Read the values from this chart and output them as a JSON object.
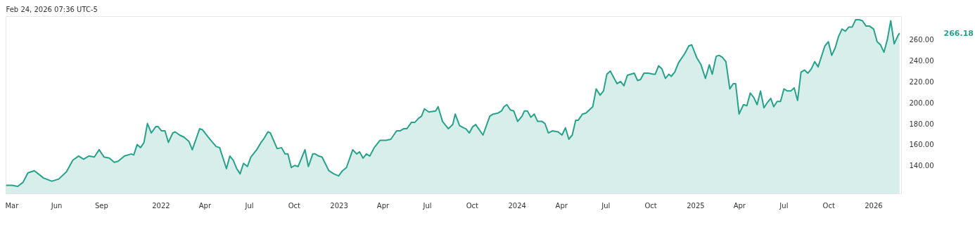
{
  "chart_data": {
    "type": "area",
    "annotations": [
      "Feb 24, 2026 07:36 UTC-5",
      "266.18"
    ],
    "x": [
      "2021-02-17",
      "2021-03-02",
      "2021-03-13",
      "2021-03-24",
      "2021-04-03",
      "2021-04-16",
      "2021-04-27",
      "2021-05-05",
      "2021-05-22",
      "2021-06-05",
      "2021-06-21",
      "2021-07-04",
      "2021-07-16",
      "2021-07-26",
      "2021-08-06",
      "2021-08-17",
      "2021-08-27",
      "2021-09-06",
      "2021-09-17",
      "2021-09-27",
      "2021-10-05",
      "2021-10-18",
      "2021-11-01",
      "2021-11-06",
      "2021-11-13",
      "2021-11-20",
      "2021-11-27",
      "2021-12-04",
      "2021-12-12",
      "2021-12-21",
      "2021-12-26",
      "2022-01-02",
      "2022-01-09",
      "2022-01-16",
      "2022-01-25",
      "2022-01-30",
      "2022-02-08",
      "2022-02-17",
      "2022-02-27",
      "2022-03-06",
      "2022-03-21",
      "2022-03-27",
      "2022-04-11",
      "2022-04-24",
      "2022-05-01",
      "2022-05-15",
      "2022-05-22",
      "2022-05-29",
      "2022-06-05",
      "2022-06-12",
      "2022-06-19",
      "2022-06-27",
      "2022-07-04",
      "2022-07-16",
      "2022-07-25",
      "2022-07-30",
      "2022-08-08",
      "2022-08-13",
      "2022-08-27",
      "2022-09-05",
      "2022-09-12",
      "2022-09-18",
      "2022-09-25",
      "2022-10-02",
      "2022-10-09",
      "2022-10-23",
      "2022-10-30",
      "2022-11-08",
      "2022-11-13",
      "2022-11-20",
      "2022-11-27",
      "2022-12-11",
      "2022-12-21",
      "2022-12-31",
      "2023-01-08",
      "2023-01-16",
      "2023-01-29",
      "2023-02-06",
      "2023-02-12",
      "2023-02-19",
      "2023-02-26",
      "2023-03-05",
      "2023-03-14",
      "2023-03-26",
      "2023-04-07",
      "2023-04-17",
      "2023-04-29",
      "2023-05-06",
      "2023-05-13",
      "2023-05-20",
      "2023-05-29",
      "2023-06-05",
      "2023-06-13",
      "2023-06-19",
      "2023-06-25",
      "2023-07-04",
      "2023-07-18",
      "2023-07-23",
      "2023-08-01",
      "2023-08-13",
      "2023-08-22",
      "2023-08-27",
      "2023-09-05",
      "2023-09-13",
      "2023-09-18",
      "2023-09-25",
      "2023-10-02",
      "2023-10-08",
      "2023-10-23",
      "2023-11-06",
      "2023-11-13",
      "2023-11-23",
      "2023-11-30",
      "2023-12-05",
      "2023-12-11",
      "2023-12-18",
      "2023-12-25",
      "2024-01-02",
      "2024-01-11",
      "2024-01-16",
      "2024-01-22",
      "2024-01-29",
      "2024-02-05",
      "2024-02-12",
      "2024-02-21",
      "2024-02-27",
      "2024-03-05",
      "2024-03-13",
      "2024-03-25",
      "2024-04-02",
      "2024-04-09",
      "2024-04-16",
      "2024-04-23",
      "2024-04-30",
      "2024-05-05",
      "2024-05-14",
      "2024-05-21",
      "2024-05-28",
      "2024-06-04",
      "2024-06-11",
      "2024-06-19",
      "2024-06-26",
      "2024-07-03",
      "2024-07-10",
      "2024-07-18",
      "2024-07-24",
      "2024-07-31",
      "2024-08-07",
      "2024-08-14",
      "2024-08-21",
      "2024-08-28",
      "2024-09-04",
      "2024-09-10",
      "2024-09-17",
      "2024-09-26",
      "2024-10-06",
      "2024-10-10",
      "2024-10-17",
      "2024-10-24",
      "2024-10-31",
      "2024-11-07",
      "2024-11-12",
      "2024-11-19",
      "2024-11-27",
      "2024-12-10",
      "2024-12-18",
      "2024-12-24",
      "2025-01-03",
      "2025-01-12",
      "2025-01-21",
      "2025-01-29",
      "2025-02-04",
      "2025-02-12",
      "2025-02-18",
      "2025-02-25",
      "2025-03-04",
      "2025-03-12",
      "2025-03-19",
      "2025-03-24",
      "2025-03-31",
      "2025-04-09",
      "2025-04-16",
      "2025-04-23",
      "2025-04-30",
      "2025-05-07",
      "2025-05-14",
      "2025-05-21",
      "2025-05-28",
      "2025-06-04",
      "2025-06-10",
      "2025-06-17",
      "2025-06-24",
      "2025-07-01",
      "2025-07-08",
      "2025-07-15",
      "2025-07-22",
      "2025-07-29",
      "2025-08-05",
      "2025-08-12",
      "2025-08-19",
      "2025-08-26",
      "2025-09-02",
      "2025-09-09",
      "2025-09-16",
      "2025-09-23",
      "2025-09-30",
      "2025-10-07",
      "2025-10-14",
      "2025-10-21",
      "2025-10-28",
      "2025-11-04",
      "2025-11-11",
      "2025-11-18",
      "2025-11-25",
      "2025-12-02",
      "2025-12-09",
      "2025-12-16",
      "2025-12-23",
      "2026-01-01",
      "2026-01-08",
      "2026-01-15",
      "2026-01-22",
      "2026-01-29",
      "2026-02-05",
      "2026-02-12",
      "2026-02-20",
      "2026-02-23"
    ],
    "series": [
      {
        "color": "#26a28c",
        "values": [
          121,
          121,
          120,
          124,
          133,
          135,
          131,
          128,
          125,
          127,
          134,
          145,
          149,
          146,
          149,
          148,
          155,
          148,
          147,
          143,
          144,
          149,
          151,
          150,
          160,
          157,
          162,
          180,
          171,
          177,
          177,
          173,
          173,
          162,
          171,
          172,
          169,
          167,
          163,
          155,
          175,
          174,
          165,
          158,
          157,
          137,
          149,
          145,
          137,
          132,
          142,
          139,
          148,
          155,
          162,
          165,
          172,
          171,
          156,
          157,
          151,
          151,
          138,
          140,
          139,
          155,
          139,
          151,
          151,
          149,
          148,
          135,
          132,
          130,
          135,
          138,
          155,
          151,
          153,
          147,
          151,
          149,
          157,
          164,
          164,
          165,
          173,
          173,
          175,
          175,
          181,
          181,
          185,
          187,
          194,
          191,
          192,
          196,
          182,
          175,
          179,
          189,
          178,
          176,
          175,
          171,
          177,
          179,
          169,
          187,
          189,
          190,
          192,
          196,
          198,
          193,
          192,
          182,
          187,
          192,
          192,
          186,
          189,
          182,
          182,
          180,
          171,
          173,
          172,
          169,
          176,
          165,
          169,
          183,
          183,
          189,
          190,
          193,
          196,
          213,
          207,
          211,
          227,
          230,
          223,
          218,
          220,
          216,
          226,
          227,
          228,
          221,
          222,
          228,
          228,
          227,
          227,
          235,
          232,
          223,
          227,
          225,
          229,
          238,
          247,
          254,
          255,
          243,
          236,
          223,
          236,
          227,
          244,
          245,
          243,
          239,
          213,
          218,
          218,
          189,
          198,
          197,
          209,
          205,
          198,
          211,
          195,
          200,
          204,
          196,
          201,
          201,
          213,
          211,
          211,
          214,
          202,
          229,
          231,
          228,
          232,
          239,
          234,
          244,
          254,
          258,
          245,
          252,
          263,
          270,
          268,
          272,
          272,
          279,
          279,
          278,
          273,
          273,
          270,
          258,
          255,
          248,
          260,
          278,
          256,
          264,
          266.18
        ]
      }
    ],
    "xlim": [
      "2021-02-17",
      "2026-02-27"
    ],
    "xticks": [
      {
        "value": "2021-03-01",
        "label": "Mar"
      },
      {
        "value": "2021-06-01",
        "label": "Jun"
      },
      {
        "value": "2021-09-01",
        "label": "Sep"
      },
      {
        "value": "2022-01-01",
        "label": "2022"
      },
      {
        "value": "2022-04-01",
        "label": "Apr"
      },
      {
        "value": "2022-07-01",
        "label": "Jul"
      },
      {
        "value": "2022-10-01",
        "label": "Oct"
      },
      {
        "value": "2023-01-01",
        "label": "2023"
      },
      {
        "value": "2023-04-01",
        "label": "Apr"
      },
      {
        "value": "2023-07-01",
        "label": "Jul"
      },
      {
        "value": "2023-10-01",
        "label": "Oct"
      },
      {
        "value": "2024-01-01",
        "label": "2024"
      },
      {
        "value": "2024-04-01",
        "label": "Apr"
      },
      {
        "value": "2024-07-01",
        "label": "Jul"
      },
      {
        "value": "2024-10-01",
        "label": "Oct"
      },
      {
        "value": "2025-01-01",
        "label": "2025"
      },
      {
        "value": "2025-04-01",
        "label": "Apr"
      },
      {
        "value": "2025-07-01",
        "label": "Jul"
      },
      {
        "value": "2025-10-01",
        "label": "Oct"
      },
      {
        "value": "2026-01-01",
        "label": "2026"
      }
    ],
    "ylim": [
      113,
      282
    ],
    "yticks": [
      {
        "value": 140,
        "label": "140.00"
      },
      {
        "value": 160,
        "label": "160.00"
      },
      {
        "value": 180,
        "label": "180.00"
      },
      {
        "value": 200,
        "label": "200.00"
      },
      {
        "value": 220,
        "label": "220.00"
      },
      {
        "value": 240,
        "label": "240.00"
      },
      {
        "value": 260,
        "label": "260.00"
      }
    ],
    "grid": false
  }
}
